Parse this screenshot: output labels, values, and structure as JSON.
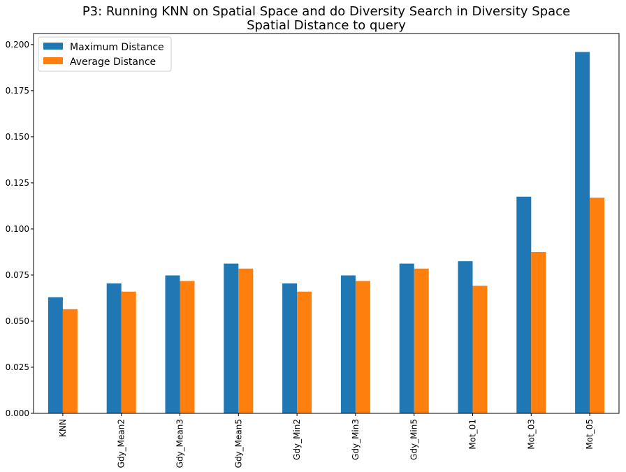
{
  "chart_data": {
    "type": "bar",
    "title": "P3: Running KNN on Spatial Space and do Diversity Search in Diversity Space",
    "subtitle": "Spatial Distance to query",
    "xlabel": "",
    "ylabel": "",
    "categories": [
      "KNN",
      "Gdy_Mean2",
      "Gdy_Mean3",
      "Gdy_Mean5",
      "Gdy_Min2",
      "Gdy_Min3",
      "Gdy_Min5",
      "Mot_01",
      "Mot_03",
      "Mot_05"
    ],
    "series": [
      {
        "name": "Maximum Distance",
        "color": "#1f77b4",
        "values": [
          0.063,
          0.0705,
          0.0748,
          0.0812,
          0.0705,
          0.0748,
          0.0812,
          0.0825,
          0.1175,
          0.196
        ]
      },
      {
        "name": "Average Distance",
        "color": "#ff7f0e",
        "values": [
          0.0565,
          0.066,
          0.0718,
          0.0785,
          0.066,
          0.0718,
          0.0785,
          0.0692,
          0.0875,
          0.117
        ]
      }
    ],
    "ylim": [
      0,
      0.206
    ],
    "yticks": [
      "0.000",
      "0.025",
      "0.050",
      "0.075",
      "0.100",
      "0.125",
      "0.150",
      "0.175",
      "0.200"
    ],
    "legend_position": "top-left",
    "grid": false
  }
}
